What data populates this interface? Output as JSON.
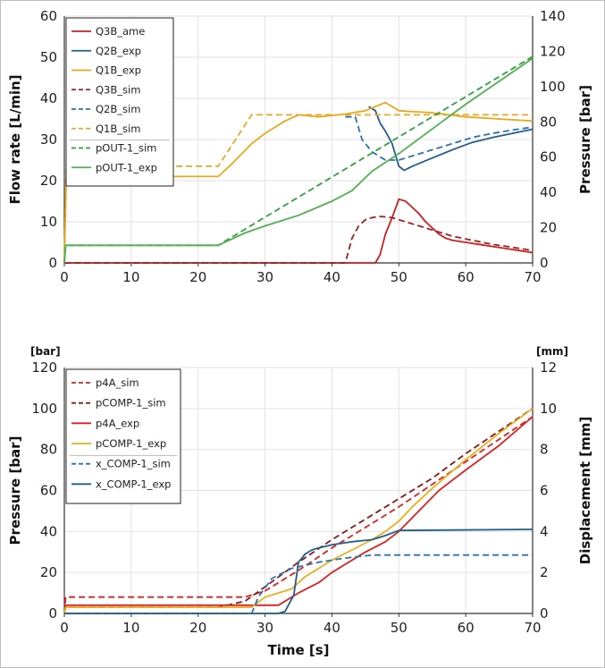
{
  "chart_data": [
    {
      "type": "line",
      "name": "top",
      "xlabel": "",
      "ylabel": "Flow rate [L/min]",
      "y2label": "Pressure [bar]",
      "xlim": [
        0,
        70
      ],
      "ylim": [
        0,
        60
      ],
      "y2lim": [
        0,
        140
      ],
      "xticks": [
        0,
        10,
        20,
        30,
        40,
        50,
        60,
        70
      ],
      "yticks": [
        0,
        10,
        20,
        30,
        40,
        50,
        60
      ],
      "y2ticks": [
        0,
        20,
        40,
        60,
        80,
        100,
        120,
        140
      ],
      "grid": true,
      "legend_position": "top-left",
      "series": [
        {
          "name": "Q3B_ame",
          "axis": "y",
          "color": "#cc2020",
          "dash": false,
          "x": [
            0,
            46.5,
            47.2,
            48,
            49,
            50,
            51,
            52,
            53,
            54,
            55,
            56,
            57,
            58,
            60,
            62,
            64,
            66,
            68,
            70
          ],
          "y": [
            0,
            0,
            2,
            7,
            11,
            15.5,
            15,
            13.5,
            12,
            10,
            8.5,
            7,
            6,
            5.5,
            5,
            4.5,
            4,
            3.5,
            3,
            2.5
          ]
        },
        {
          "name": "Q2B_exp",
          "axis": "y",
          "color": "#1f5f8f",
          "dash": false,
          "x": [
            45.5,
            46.5,
            47.2,
            48,
            49,
            50,
            50.8,
            52,
            55,
            58,
            61,
            64,
            67,
            70
          ],
          "y": [
            38,
            37,
            34,
            32,
            29,
            23.5,
            22.5,
            23.5,
            25.5,
            27.5,
            29.3,
            30.5,
            31.5,
            32.5
          ]
        },
        {
          "name": "Q1B_exp",
          "axis": "y",
          "color": "#e8a820",
          "dash": false,
          "x": [
            0,
            0.3,
            1,
            23,
            25,
            28,
            30,
            33,
            35,
            38,
            42,
            45,
            48,
            50,
            55,
            60,
            65,
            70
          ],
          "y": [
            0,
            21,
            21,
            21,
            24,
            29,
            31.5,
            34.5,
            36,
            35.5,
            36.2,
            37,
            39,
            37,
            36.5,
            35.5,
            35,
            34.5
          ]
        },
        {
          "name": "Q3B_sim",
          "axis": "y",
          "color": "#a02020",
          "dash": true,
          "x": [
            0,
            42,
            43,
            44,
            45,
            46,
            47,
            48,
            49,
            50,
            52,
            55,
            58,
            61,
            64,
            67,
            70
          ],
          "y": [
            0,
            0,
            6,
            9,
            10.5,
            11,
            11.3,
            11.2,
            11,
            10.5,
            9.5,
            8,
            6.5,
            5.5,
            4.5,
            3.8,
            3
          ]
        },
        {
          "name": "Q2B_sim",
          "axis": "y",
          "color": "#2a72b0",
          "dash": true,
          "x": [
            42,
            43.5,
            44.5,
            46,
            48,
            50,
            52,
            55,
            58,
            61,
            64,
            67,
            70
          ],
          "y": [
            35.5,
            35.5,
            30,
            27,
            25,
            25,
            26,
            27.5,
            29,
            30.5,
            31.5,
            32.3,
            33
          ]
        },
        {
          "name": "Q1B_sim",
          "axis": "y",
          "color": "#e8a820",
          "dash": true,
          "x": [
            0,
            0.3,
            23,
            28,
            70
          ],
          "y": [
            0,
            23.5,
            23.5,
            36,
            36
          ]
        },
        {
          "name": "pOUT-1_sim",
          "axis": "y2",
          "color": "#30a040",
          "dash": true,
          "x": [
            0,
            0.2,
            23,
            70
          ],
          "y": [
            0,
            10,
            10,
            117
          ]
        },
        {
          "name": "pOUT-1_exp",
          "axis": "y2",
          "color": "#50b050",
          "dash": false,
          "x": [
            0,
            0.2,
            23,
            27,
            30,
            35,
            40,
            43,
            46,
            50,
            55,
            60,
            65,
            70
          ],
          "y": [
            0,
            10,
            10,
            17,
            21,
            27,
            35,
            41,
            52,
            62,
            76,
            90,
            103,
            116
          ]
        }
      ]
    },
    {
      "type": "line",
      "name": "bottom",
      "xlabel": "Time [s]",
      "ylabel": "Pressure [bar]",
      "y2label": "Displacement [mm]",
      "yunit": "[bar]",
      "y2unit": "[mm]",
      "xlim": [
        0,
        70
      ],
      "ylim": [
        0,
        120
      ],
      "y2lim": [
        0,
        12
      ],
      "xticks": [
        0,
        10,
        20,
        30,
        40,
        50,
        60,
        70
      ],
      "yticks": [
        0,
        20,
        40,
        60,
        80,
        100,
        120
      ],
      "y2ticks": [
        0,
        2,
        4,
        6,
        8,
        10,
        12
      ],
      "grid": true,
      "legend_position": "top-left",
      "series": [
        {
          "name": "p4A_sim",
          "axis": "y",
          "color": "#dd2222",
          "dash": true,
          "x": [
            0,
            0.2,
            27,
            30,
            35,
            40,
            45,
            50,
            55,
            60,
            65,
            70
          ],
          "y": [
            0,
            8,
            8,
            11,
            21,
            32,
            42,
            52,
            63,
            74,
            85,
            96
          ]
        },
        {
          "name": "pCOMP-1_sim",
          "axis": "y",
          "color": "#8a1a1a",
          "dash": true,
          "x": [
            0,
            0.2,
            23,
            27,
            30,
            35,
            40,
            45,
            50,
            55,
            60,
            65,
            70
          ],
          "y": [
            0,
            3,
            3,
            6,
            13,
            25,
            36,
            46,
            56,
            66,
            78,
            89,
            100
          ]
        },
        {
          "name": "p4A_exp",
          "axis": "y",
          "color": "#dd2222",
          "dash": false,
          "x": [
            0,
            0.2,
            32,
            35,
            38,
            40,
            42,
            45,
            48,
            50,
            53,
            56,
            60,
            65,
            70
          ],
          "y": [
            0,
            4,
            4,
            10,
            15,
            20,
            24,
            30,
            35,
            40,
            50,
            60,
            70,
            82,
            96
          ]
        },
        {
          "name": "pCOMP-1_exp",
          "axis": "y",
          "color": "#e8b020",
          "dash": false,
          "x": [
            0,
            0.2,
            28,
            30,
            32,
            34,
            36,
            38,
            40,
            43,
            46,
            48,
            50,
            52,
            55,
            60,
            65,
            70
          ],
          "y": [
            0,
            3,
            3,
            8,
            10,
            12,
            18,
            22,
            26,
            31,
            36,
            40,
            45,
            52,
            61,
            75,
            88,
            100
          ]
        },
        {
          "name": "x_COMP-1_sim",
          "axis": "y2",
          "color": "#2a72b0",
          "dash": true,
          "x": [
            0,
            28,
            29,
            31,
            34,
            38,
            42,
            46,
            50,
            70
          ],
          "y": [
            0,
            0,
            0.8,
            1.7,
            2.2,
            2.5,
            2.7,
            2.85,
            2.85,
            2.85
          ]
        },
        {
          "name": "x_COMP-1_exp",
          "axis": "y2",
          "color": "#1f5f8f",
          "dash": false,
          "x": [
            0,
            32,
            33,
            34.3,
            35,
            36,
            37,
            38,
            40,
            43,
            46,
            48,
            50,
            70
          ],
          "y": [
            0,
            0,
            0.1,
            0.9,
            2.5,
            2.9,
            3.1,
            3.2,
            3.35,
            3.5,
            3.6,
            3.8,
            4.05,
            4.1
          ]
        }
      ]
    }
  ]
}
